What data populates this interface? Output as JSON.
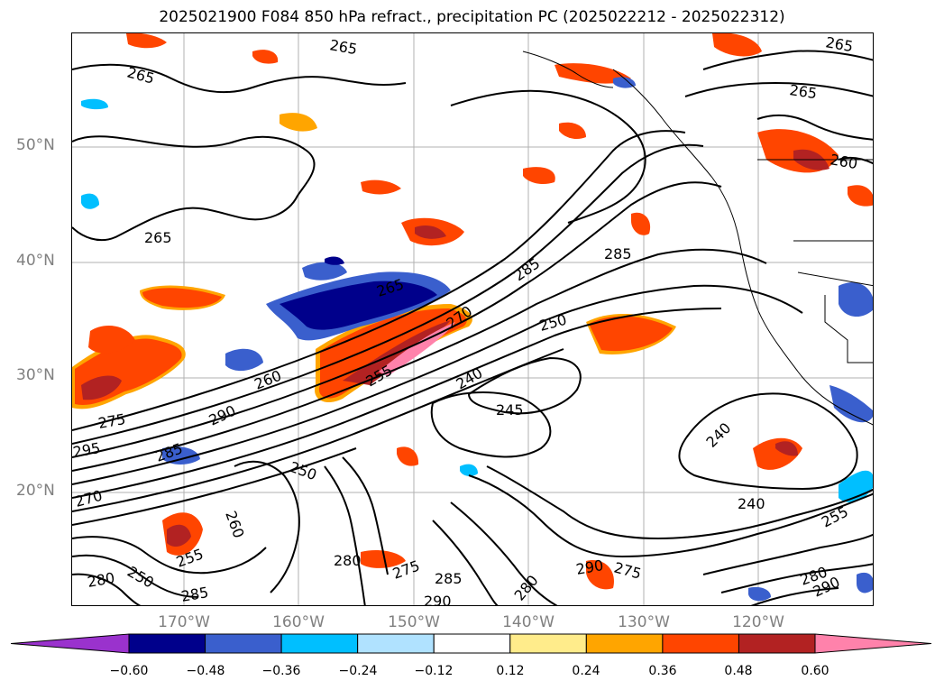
{
  "title": "2025021900 F084 850 hPa refract., precipitation PC (2025022212 - 2025022312)",
  "lat_labels": [
    "50°N",
    "40°N",
    "30°N",
    "20°N"
  ],
  "lon_labels": [
    "170°W",
    "160°W",
    "150°W",
    "140°W",
    "130°W",
    "120°W"
  ],
  "colorbar": {
    "ticks": [
      "−0.60",
      "−0.48",
      "−0.36",
      "−0.24",
      "−0.12",
      "0.12",
      "0.24",
      "0.36",
      "0.48",
      "0.60"
    ],
    "colors": [
      "#9a32cd",
      "#00008b",
      "#3a5fcd",
      "#00bfff",
      "#b0e2ff",
      "#ffffff",
      "#ffec8b",
      "#ffa500",
      "#ff4500",
      "#b22222",
      "#ff82ab"
    ]
  },
  "contour_labels": [
    "265",
    "265",
    "265",
    "265",
    "265",
    "265",
    "260",
    "260",
    "260",
    "255",
    "255",
    "255",
    "250",
    "250",
    "250",
    "245",
    "240",
    "240",
    "240",
    "290",
    "290",
    "290",
    "290",
    "285",
    "285",
    "285",
    "285",
    "280",
    "280",
    "280",
    "275",
    "275",
    "275",
    "270",
    "270",
    "295",
    "280",
    "285"
  ],
  "colors": {
    "land_contour": "#000000",
    "grid": "#b0b0b0",
    "axis_label": "#808080"
  }
}
